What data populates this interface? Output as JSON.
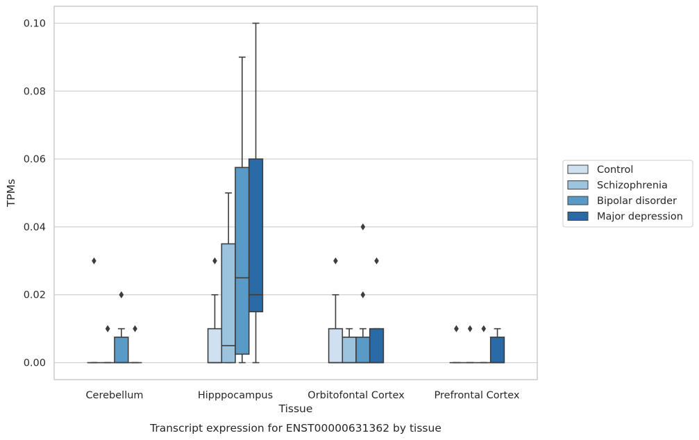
{
  "caption": "Transcript expression for ENST00000631362 by tissue",
  "chart_data": {
    "type": "box",
    "title": "",
    "xlabel": "Tissue",
    "ylabel": "TPMs",
    "ylim": [
      -0.005,
      0.105
    ],
    "yticks": [
      0.0,
      0.02,
      0.04,
      0.06,
      0.08,
      0.1
    ],
    "ytick_labels": [
      "0.00",
      "0.02",
      "0.04",
      "0.06",
      "0.08",
      "0.10"
    ],
    "grid": true,
    "legend_position": "right",
    "categories": [
      "Cerebellum",
      "Hipppocampus",
      "Orbitofontal Cortex",
      "Prefrontal Cortex"
    ],
    "series": [
      {
        "name": "Control",
        "color": "#cfe0f0",
        "boxes": [
          {
            "q1": 0.0,
            "median": 0.0,
            "q3": 0.0,
            "whislo": 0.0,
            "whishi": 0.0,
            "fliers": [
              0.03
            ]
          },
          {
            "q1": 0.0,
            "median": 0.0,
            "q3": 0.01,
            "whislo": 0.0,
            "whishi": 0.02,
            "fliers": [
              0.03
            ]
          },
          {
            "q1": 0.0,
            "median": 0.0,
            "q3": 0.01,
            "whislo": 0.0,
            "whishi": 0.02,
            "fliers": [
              0.03
            ]
          },
          {
            "q1": 0.0,
            "median": 0.0,
            "q3": 0.0,
            "whislo": 0.0,
            "whishi": 0.0,
            "fliers": [
              0.01,
              0.01
            ]
          }
        ]
      },
      {
        "name": "Schizophrenia",
        "color": "#9cc4de",
        "boxes": [
          {
            "q1": 0.0,
            "median": 0.0,
            "q3": 0.0,
            "whislo": 0.0,
            "whishi": 0.0,
            "fliers": [
              0.01,
              0.01
            ]
          },
          {
            "q1": 0.0,
            "median": 0.005,
            "q3": 0.035,
            "whislo": 0.0,
            "whishi": 0.05,
            "fliers": []
          },
          {
            "q1": 0.0,
            "median": 0.0,
            "q3": 0.0075,
            "whislo": 0.0,
            "whishi": 0.01,
            "fliers": []
          },
          {
            "q1": 0.0,
            "median": 0.0,
            "q3": 0.0,
            "whislo": 0.0,
            "whishi": 0.0,
            "fliers": [
              0.01
            ]
          }
        ]
      },
      {
        "name": "Bipolar disorder",
        "color": "#5a9ac7",
        "boxes": [
          {
            "q1": 0.0,
            "median": 0.0,
            "q3": 0.0075,
            "whislo": 0.0,
            "whishi": 0.01,
            "fliers": [
              0.02,
              0.02
            ]
          },
          {
            "q1": 0.0025,
            "median": 0.025,
            "q3": 0.0575,
            "whislo": 0.0,
            "whishi": 0.09,
            "fliers": []
          },
          {
            "q1": 0.0,
            "median": 0.0,
            "q3": 0.0075,
            "whislo": 0.0,
            "whishi": 0.01,
            "fliers": [
              0.02,
              0.04
            ]
          },
          {
            "q1": 0.0,
            "median": 0.0,
            "q3": 0.0,
            "whislo": 0.0,
            "whishi": 0.0,
            "fliers": [
              0.01
            ]
          }
        ]
      },
      {
        "name": "Major depression",
        "color": "#2a6aa5",
        "boxes": [
          {
            "q1": 0.0,
            "median": 0.0,
            "q3": 0.0,
            "whislo": 0.0,
            "whishi": 0.0,
            "fliers": [
              0.01
            ]
          },
          {
            "q1": 0.015,
            "median": 0.02,
            "q3": 0.06,
            "whislo": 0.0,
            "whishi": 0.1,
            "fliers": []
          },
          {
            "q1": 0.0,
            "median": 0.0,
            "q3": 0.01,
            "whislo": 0.0,
            "whishi": 0.01,
            "fliers": [
              0.03
            ]
          },
          {
            "q1": 0.0,
            "median": 0.0,
            "q3": 0.0075,
            "whislo": 0.0,
            "whishi": 0.01,
            "fliers": []
          }
        ]
      }
    ]
  }
}
